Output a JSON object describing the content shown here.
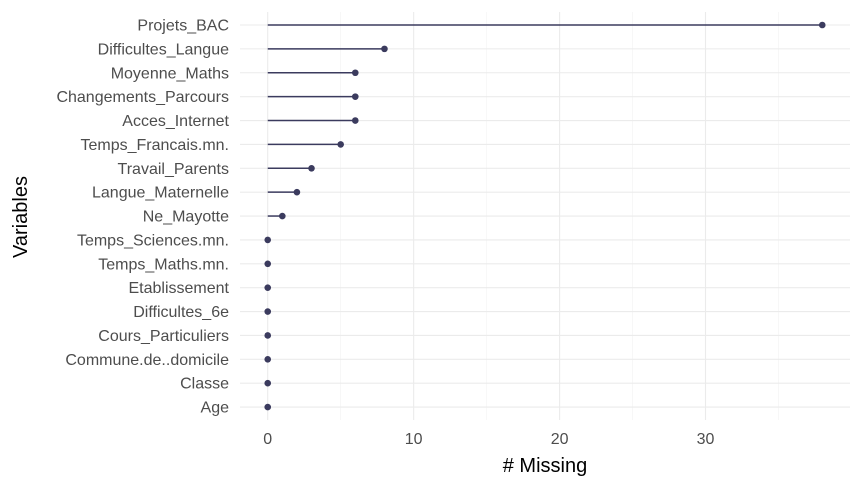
{
  "chart_data": {
    "type": "lollipop",
    "xlabel": "# Missing",
    "ylabel": "Variables",
    "xlim": [
      -1.9,
      39.9
    ],
    "x_ticks": [
      0,
      10,
      20,
      30
    ],
    "x_tick_labels": [
      "0",
      "10",
      "20",
      "30"
    ],
    "grid": true,
    "series_color": "#3b3b5e",
    "categories": [
      "Projets_BAC",
      "Difficultes_Langue",
      "Moyenne_Maths",
      "Changements_Parcours",
      "Acces_Internet",
      "Temps_Francais.mn.",
      "Travail_Parents",
      "Langue_Maternelle",
      "Ne_Mayotte",
      "Temps_Sciences.mn.",
      "Temps_Maths.mn.",
      "Etablissement",
      "Difficultes_6e",
      "Cours_Particuliers",
      "Commune.de..domicile",
      "Classe",
      "Age"
    ],
    "values": [
      38,
      8,
      6,
      6,
      6,
      5,
      3,
      2,
      1,
      0,
      0,
      0,
      0,
      0,
      0,
      0,
      0
    ]
  }
}
